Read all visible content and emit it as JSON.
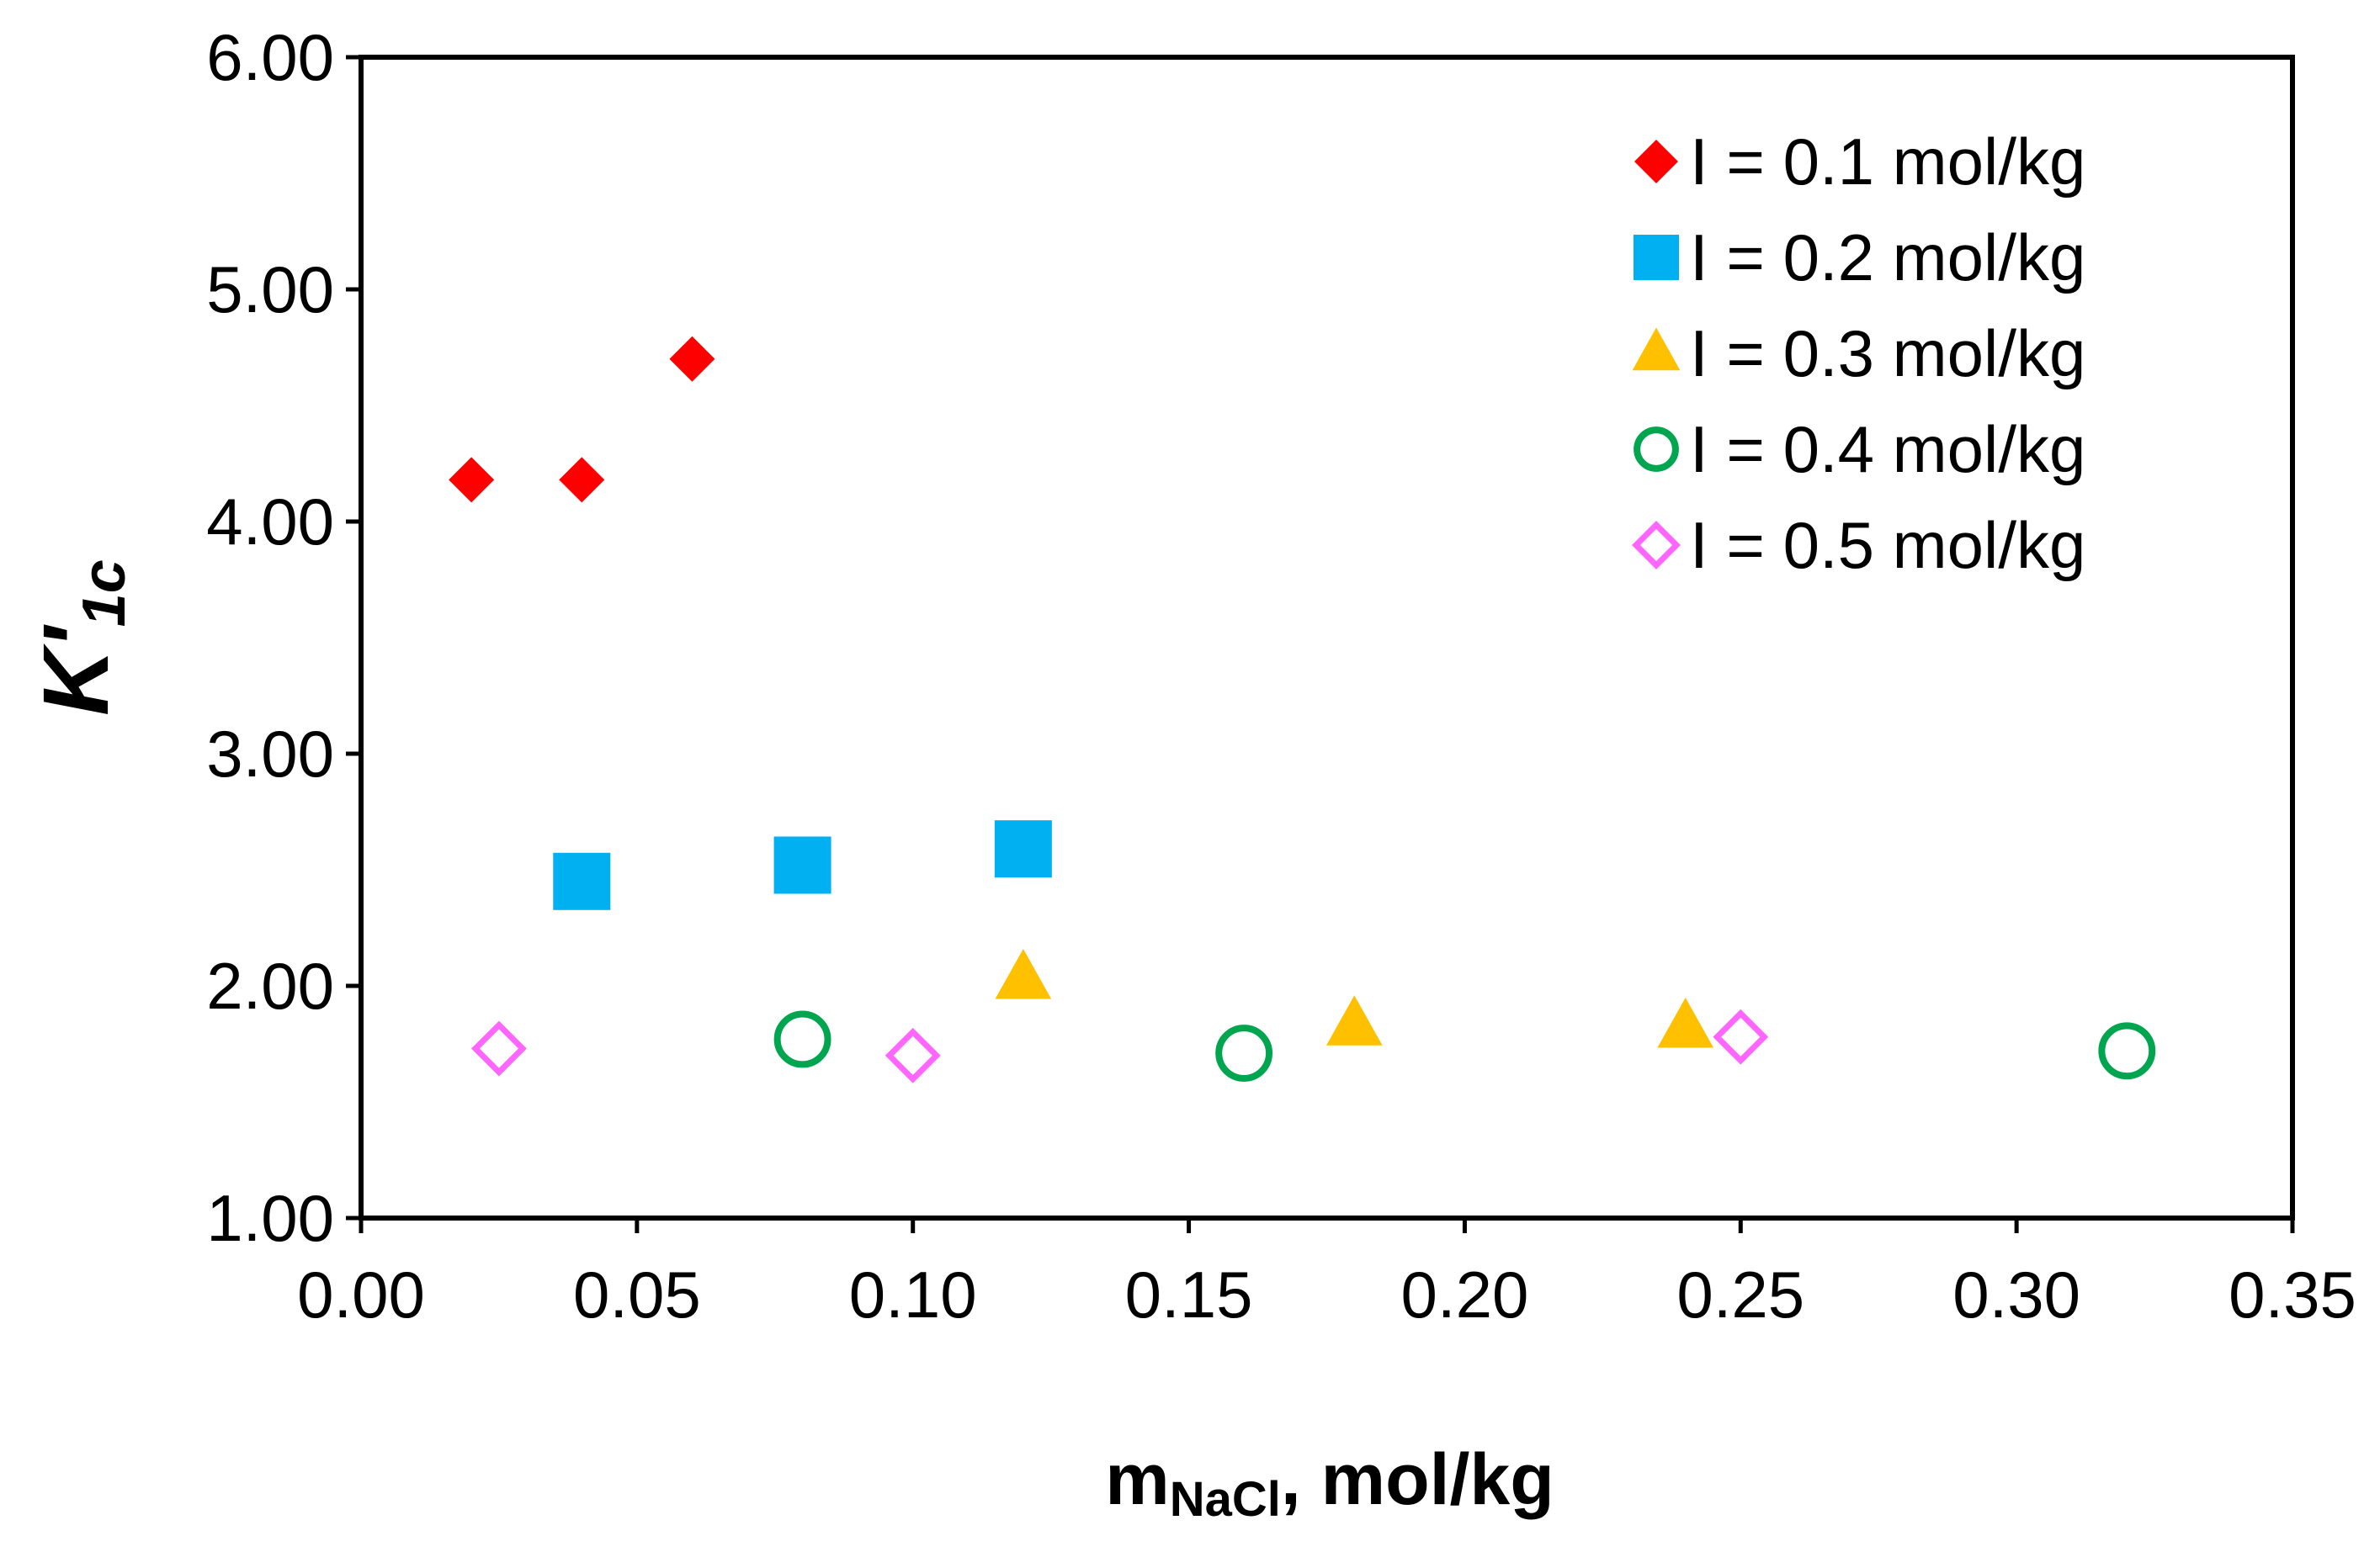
{
  "chart_data": {
    "type": "scatter",
    "title": "",
    "xlabel": {
      "main": "m",
      "sub": "NaCl",
      "rest": ", mol/kg"
    },
    "ylabel": {
      "main": "K'",
      "sub": "1c"
    },
    "xlim": [
      0,
      0.35
    ],
    "ylim": [
      1,
      6
    ],
    "xticks": [
      "0.00",
      "0.05",
      "0.10",
      "0.15",
      "0.20",
      "0.25",
      "0.30",
      "0.35"
    ],
    "yticks": [
      "1.00",
      "2.00",
      "3.00",
      "4.00",
      "5.00",
      "6.00"
    ],
    "grid": false,
    "legend_position": "top-right",
    "series": [
      {
        "name": "I = 0.1 mol/kg",
        "marker": "diamond-filled",
        "color": "#ff0000",
        "x": [
          0.02,
          0.04,
          0.06
        ],
        "y": [
          4.18,
          4.18,
          4.7
        ]
      },
      {
        "name": "I = 0.2 mol/kg",
        "marker": "square-filled",
        "color": "#00b0f0",
        "x": [
          0.04,
          0.08,
          0.12
        ],
        "y": [
          2.45,
          2.52,
          2.59
        ]
      },
      {
        "name": "I = 0.3 mol/kg",
        "marker": "triangle-filled",
        "color": "#ffc000",
        "x": [
          0.12,
          0.18,
          0.24
        ],
        "y": [
          2.03,
          1.83,
          1.82
        ]
      },
      {
        "name": "I = 0.4 mol/kg",
        "marker": "circle-open",
        "color": "#00a64f",
        "x": [
          0.08,
          0.16,
          0.32
        ],
        "y": [
          1.77,
          1.71,
          1.72
        ]
      },
      {
        "name": "I = 0.5 mol/kg",
        "marker": "diamond-open",
        "color": "#ff66ff",
        "x": [
          0.025,
          0.1,
          0.25
        ],
        "y": [
          1.73,
          1.7,
          1.78
        ]
      }
    ]
  }
}
